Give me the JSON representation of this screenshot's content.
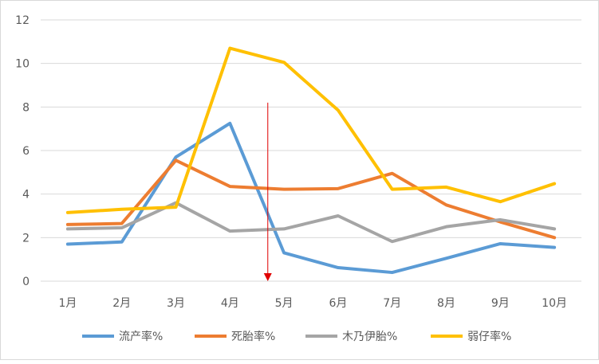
{
  "chart_data": {
    "type": "line",
    "categories": [
      "1月",
      "2月",
      "3月",
      "4月",
      "5月",
      "6月",
      "7月",
      "8月",
      "9月",
      "10月"
    ],
    "ylim": [
      0,
      12
    ],
    "yticks": [
      0,
      2,
      4,
      6,
      8,
      10,
      12
    ],
    "grid": true,
    "legend_position": "bottom",
    "series": [
      {
        "name": "流产率%",
        "color": "#5b9bd5",
        "values": [
          1.7,
          1.8,
          5.7,
          7.25,
          1.3,
          0.62,
          0.4,
          1.05,
          1.72,
          1.55
        ]
      },
      {
        "name": "死胎率%",
        "color": "#ed7d31",
        "values": [
          2.6,
          2.65,
          5.55,
          4.35,
          4.22,
          4.25,
          4.95,
          3.5,
          2.72,
          2.0
        ]
      },
      {
        "name": "木乃伊胎%",
        "color": "#a5a5a5",
        "values": [
          2.4,
          2.45,
          3.6,
          2.3,
          2.4,
          3.0,
          1.82,
          2.5,
          2.82,
          2.4
        ]
      },
      {
        "name": "弱仔率%",
        "color": "#ffc000",
        "values": [
          3.15,
          3.3,
          3.4,
          10.7,
          10.05,
          7.85,
          4.22,
          4.32,
          3.65,
          4.48
        ]
      }
    ],
    "annotation": {
      "type": "arrow",
      "color": "#e00000",
      "x_between": [
        "4月",
        "5月"
      ],
      "x_fraction": 0.7,
      "from_y": 8.2,
      "to_y": 0
    }
  }
}
